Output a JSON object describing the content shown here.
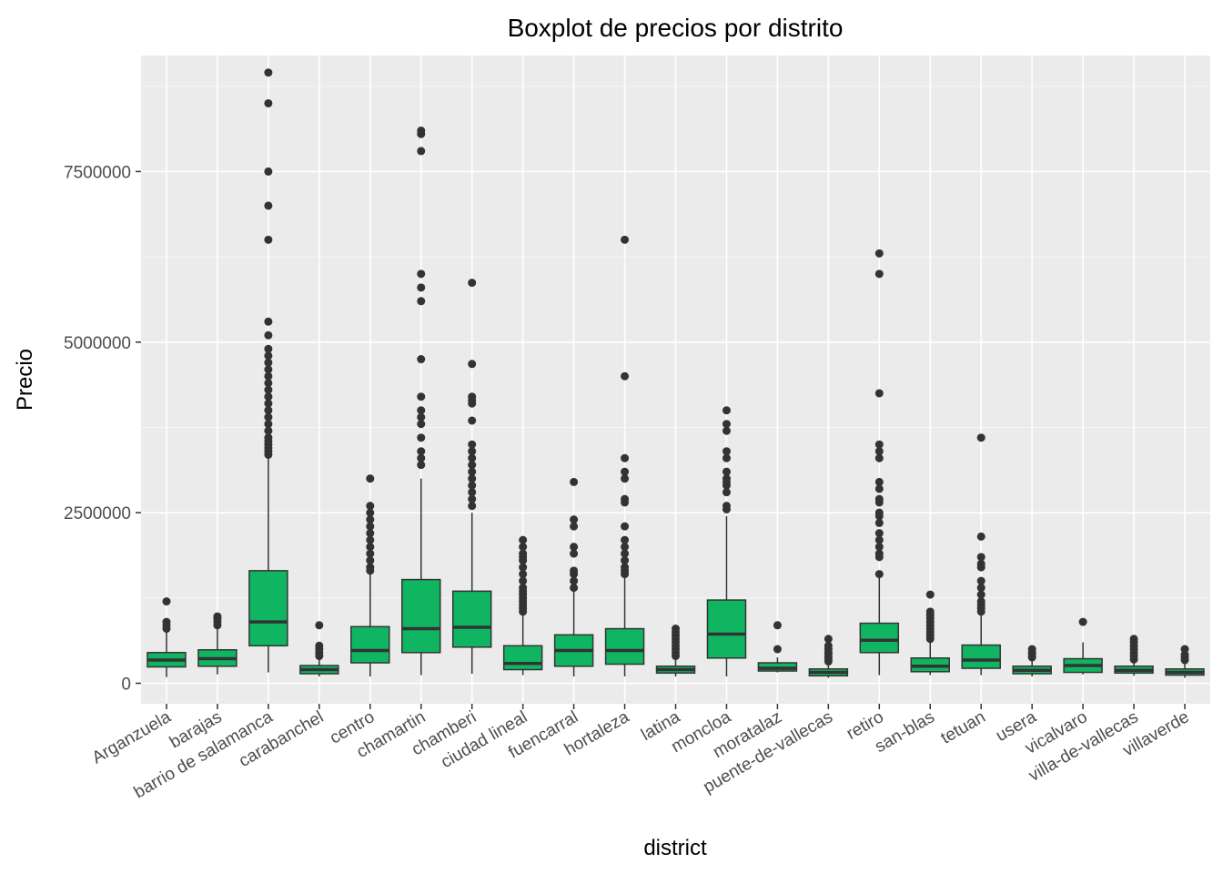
{
  "chart_data": {
    "type": "boxplot",
    "title": "Boxplot de precios por distrito",
    "xlabel": "district",
    "ylabel": "Precio",
    "ylim": [
      -300000,
      9200000
    ],
    "yticks": [
      0,
      2500000,
      5000000,
      7500000
    ],
    "ytick_labels": [
      "0",
      "2500000",
      "5000000",
      "7500000"
    ],
    "grid": true,
    "box_color": "#10B562",
    "panel_color": "#EBEBEB",
    "categories": [
      "Arganzuela",
      "barajas",
      "barrio de salamanca",
      "carabanchel",
      "centro",
      "chamartin",
      "chamberi",
      "ciudad lineal",
      "fuencarral",
      "hortaleza",
      "latina",
      "moncloa",
      "moratalaz",
      "puente-de-vallecas",
      "retiro",
      "san-blas",
      "tetuan",
      "usera",
      "vicalvaro",
      "villa-de-vallecas",
      "villaverde"
    ],
    "boxes": [
      {
        "min": 90000,
        "q1": 240000,
        "median": 340000,
        "q3": 450000,
        "max": 770000,
        "outliers": [
          800000,
          850000,
          900000,
          1200000
        ]
      },
      {
        "min": 130000,
        "q1": 250000,
        "median": 360000,
        "q3": 490000,
        "max": 820000,
        "outliers": [
          850000,
          900000,
          950000,
          980000
        ]
      },
      {
        "min": 160000,
        "q1": 550000,
        "median": 900000,
        "q3": 1650000,
        "max": 3300000,
        "outliers": [
          3350000,
          3400000,
          3450000,
          3500000,
          3550000,
          3600000,
          3700000,
          3800000,
          3900000,
          4000000,
          4100000,
          4200000,
          4300000,
          4400000,
          4500000,
          4600000,
          4700000,
          4800000,
          4900000,
          5100000,
          5300000,
          6500000,
          7000000,
          7500000,
          8500000,
          8950000
        ]
      },
      {
        "min": 100000,
        "q1": 140000,
        "median": 200000,
        "q3": 260000,
        "max": 380000,
        "outliers": [
          400000,
          450000,
          500000,
          550000,
          850000
        ]
      },
      {
        "min": 100000,
        "q1": 300000,
        "median": 480000,
        "q3": 830000,
        "max": 1600000,
        "outliers": [
          1650000,
          1700000,
          1800000,
          1900000,
          2000000,
          2100000,
          2200000,
          2300000,
          2400000,
          2500000,
          2600000,
          3000000
        ]
      },
      {
        "min": 120000,
        "q1": 450000,
        "median": 800000,
        "q3": 1520000,
        "max": 3000000,
        "outliers": [
          3200000,
          3300000,
          3400000,
          3600000,
          3800000,
          3900000,
          4000000,
          4200000,
          4750000,
          5600000,
          5800000,
          6000000,
          7800000,
          8050000,
          8100000
        ]
      },
      {
        "min": 140000,
        "q1": 530000,
        "median": 820000,
        "q3": 1350000,
        "max": 2500000,
        "outliers": [
          2600000,
          2700000,
          2800000,
          2900000,
          3000000,
          3100000,
          3200000,
          3300000,
          3400000,
          3500000,
          3850000,
          4100000,
          4150000,
          4200000,
          4680000,
          5870000
        ]
      },
      {
        "min": 120000,
        "q1": 200000,
        "median": 290000,
        "q3": 550000,
        "max": 1000000,
        "outliers": [
          1050000,
          1100000,
          1150000,
          1200000,
          1250000,
          1300000,
          1350000,
          1400000,
          1500000,
          1600000,
          1700000,
          1800000,
          1850000,
          1900000,
          2000000,
          2100000
        ]
      },
      {
        "min": 100000,
        "q1": 250000,
        "median": 480000,
        "q3": 710000,
        "max": 1350000,
        "outliers": [
          1400000,
          1500000,
          1600000,
          1650000,
          1900000,
          2000000,
          2300000,
          2400000,
          2950000
        ]
      },
      {
        "min": 100000,
        "q1": 280000,
        "median": 480000,
        "q3": 800000,
        "max": 1550000,
        "outliers": [
          1600000,
          1650000,
          1700000,
          1800000,
          1900000,
          2000000,
          2100000,
          2300000,
          2650000,
          2700000,
          3000000,
          3100000,
          3300000,
          4500000,
          6500000
        ]
      },
      {
        "min": 100000,
        "q1": 150000,
        "median": 200000,
        "q3": 250000,
        "max": 350000,
        "outliers": [
          400000,
          450000,
          500000,
          550000,
          600000,
          650000,
          700000,
          750000,
          800000
        ]
      },
      {
        "min": 100000,
        "q1": 370000,
        "median": 720000,
        "q3": 1220000,
        "max": 2450000,
        "outliers": [
          2550000,
          2600000,
          2800000,
          2900000,
          2950000,
          3000000,
          3100000,
          3300000,
          3400000,
          3700000,
          3800000,
          4000000
        ]
      },
      {
        "min": 160000,
        "q1": 180000,
        "median": 220000,
        "q3": 300000,
        "max": 380000,
        "outliers": [
          500000,
          850000
        ]
      },
      {
        "min": 80000,
        "q1": 110000,
        "median": 160000,
        "q3": 210000,
        "max": 300000,
        "outliers": [
          320000,
          350000,
          380000,
          420000,
          450000,
          500000,
          550000,
          650000
        ]
      },
      {
        "min": 120000,
        "q1": 450000,
        "median": 630000,
        "q3": 880000,
        "max": 1550000,
        "outliers": [
          1600000,
          1850000,
          1900000,
          2000000,
          2100000,
          2200000,
          2350000,
          2450000,
          2500000,
          2650000,
          2700000,
          2850000,
          2950000,
          3300000,
          3400000,
          3500000,
          4250000,
          6000000,
          6300000
        ]
      },
      {
        "min": 120000,
        "q1": 170000,
        "median": 250000,
        "q3": 370000,
        "max": 600000,
        "outliers": [
          650000,
          700000,
          750000,
          800000,
          850000,
          900000,
          950000,
          1000000,
          1050000,
          1300000
        ]
      },
      {
        "min": 120000,
        "q1": 220000,
        "median": 340000,
        "q3": 560000,
        "max": 1000000,
        "outliers": [
          1050000,
          1100000,
          1150000,
          1200000,
          1300000,
          1400000,
          1500000,
          1700000,
          1750000,
          1850000,
          2150000,
          3600000
        ]
      },
      {
        "min": 100000,
        "q1": 140000,
        "median": 190000,
        "q3": 250000,
        "max": 330000,
        "outliers": [
          380000,
          420000,
          450000,
          500000
        ]
      },
      {
        "min": 130000,
        "q1": 160000,
        "median": 260000,
        "q3": 360000,
        "max": 600000,
        "outliers": [
          900000
        ]
      },
      {
        "min": 110000,
        "q1": 150000,
        "median": 190000,
        "q3": 250000,
        "max": 320000,
        "outliers": [
          350000,
          400000,
          450000,
          500000,
          550000,
          600000,
          650000
        ]
      },
      {
        "min": 80000,
        "q1": 120000,
        "median": 160000,
        "q3": 210000,
        "max": 300000,
        "outliers": [
          340000,
          380000,
          420000,
          500000
        ]
      }
    ]
  }
}
